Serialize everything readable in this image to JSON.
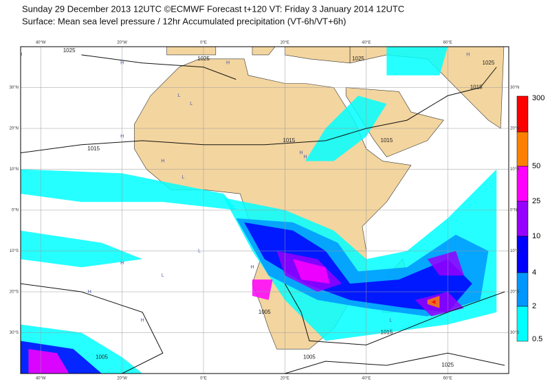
{
  "header": {
    "line1": "Sunday 29 December 2013 12UTC ©ECMWF Forecast t+120 VT: Friday 3 January 2014 12UTC",
    "line2": "Surface: Mean sea level pressure / 12hr Accumulated precipitation (VT-6h/VT+6h)"
  },
  "map": {
    "lon_labels": [
      "40°W",
      "20°W",
      "0°E",
      "20°E",
      "40°E",
      "60°E"
    ],
    "lat_labels": [
      "30°N",
      "20°N",
      "10°N",
      "0°N",
      "10°S",
      "20°S",
      "30°S"
    ],
    "isobar_labels": [
      "1025",
      "1025",
      "1025",
      "1025",
      "1015",
      "1015",
      "1015",
      "1015",
      "1015",
      "1005",
      "1005",
      "1005",
      "1025"
    ],
    "pressure_centres": [
      "H",
      "H",
      "H",
      "H",
      "L",
      "L",
      "H",
      "H",
      "L",
      "H",
      "H",
      "L",
      "H",
      "L",
      "H",
      "H",
      "L",
      "H"
    ],
    "land_color": "#f3d59f",
    "sea_color": "#ffffff"
  },
  "legend": {
    "labels": [
      "300",
      "50",
      "25",
      "10",
      "4",
      "2",
      "0.5"
    ],
    "colors": [
      "#00ffff",
      "#0096ff",
      "#0000ff",
      "#9600ff",
      "#ff00ff",
      "#ff8000",
      "#ff0000"
    ]
  }
}
